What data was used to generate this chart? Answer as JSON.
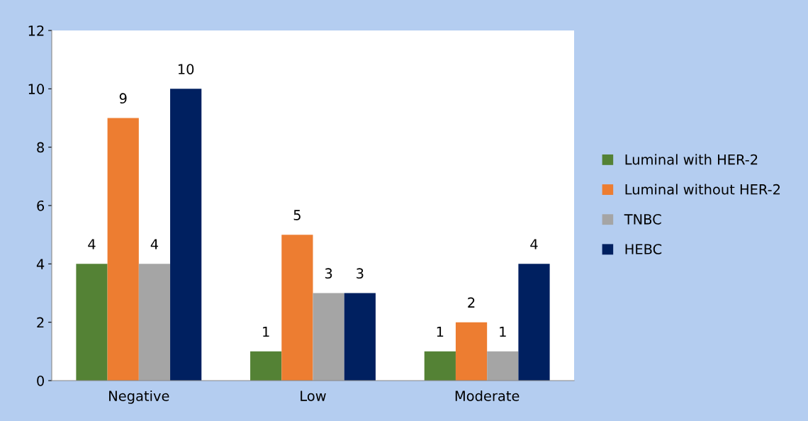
{
  "chart_data": {
    "type": "bar",
    "categories": [
      "Negative",
      "Low",
      "Moderate"
    ],
    "series": [
      {
        "name": "Luminal with HER-2",
        "color": "#548235",
        "values": [
          4,
          1,
          1
        ]
      },
      {
        "name": "Luminal without HER-2",
        "color": "#ed7d31",
        "values": [
          9,
          5,
          2
        ]
      },
      {
        "name": "TNBC",
        "color": "#a5a5a5",
        "values": [
          4,
          3,
          1
        ]
      },
      {
        "name": "HEBC",
        "color": "#002060",
        "values": [
          10,
          3,
          4
        ]
      }
    ],
    "ylim": [
      0,
      12
    ],
    "yticks": [
      0,
      2,
      4,
      6,
      8,
      10,
      12
    ],
    "data_labels": true,
    "grid": false,
    "legend": "right"
  }
}
